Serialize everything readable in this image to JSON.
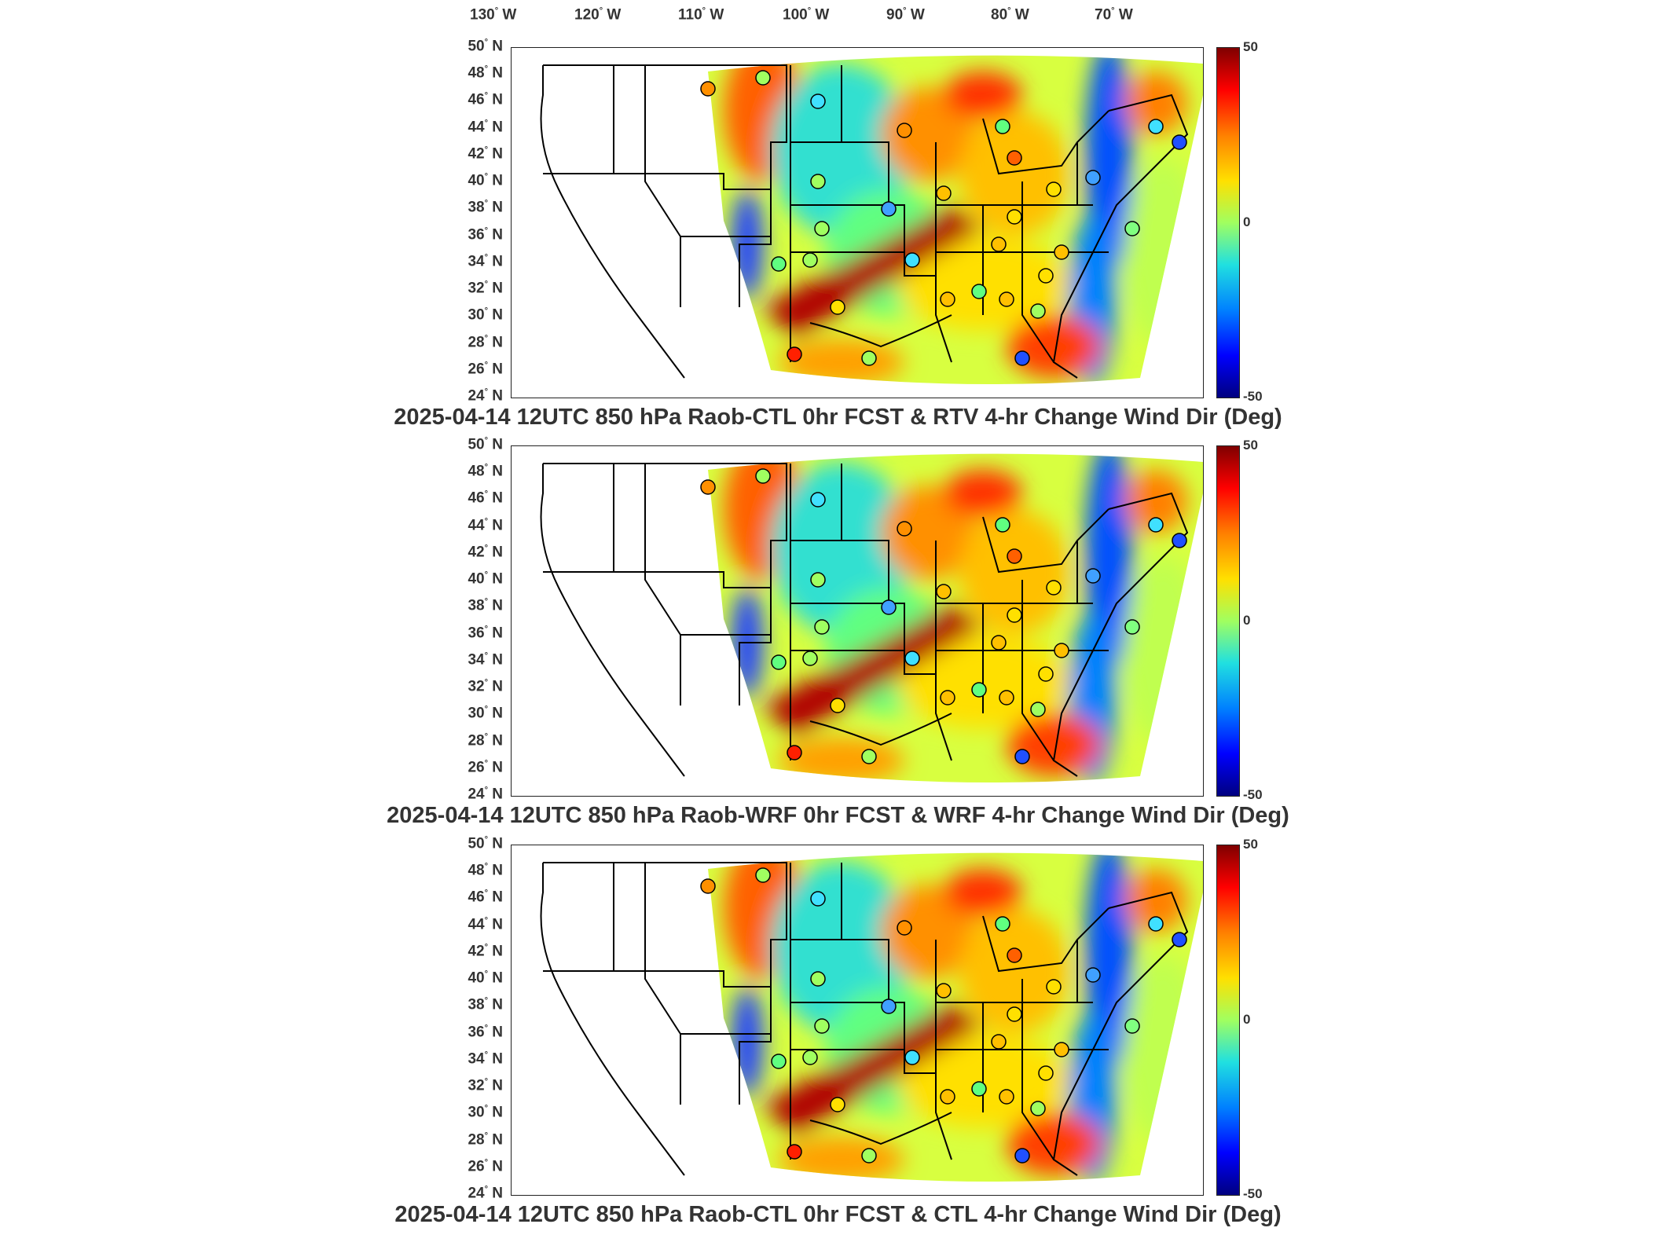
{
  "lon_labels": [
    {
      "deg": "130",
      "dir": "W"
    },
    {
      "deg": "120",
      "dir": "W"
    },
    {
      "deg": "110",
      "dir": "W"
    },
    {
      "deg": "100",
      "dir": "W"
    },
    {
      "deg": "90",
      "dir": "W"
    },
    {
      "deg": "80",
      "dir": "W"
    },
    {
      "deg": "70",
      "dir": "W"
    }
  ],
  "lat_labels": [
    {
      "deg": "50",
      "dir": "N"
    },
    {
      "deg": "48",
      "dir": "N"
    },
    {
      "deg": "46",
      "dir": "N"
    },
    {
      "deg": "44",
      "dir": "N"
    },
    {
      "deg": "42",
      "dir": "N"
    },
    {
      "deg": "40",
      "dir": "N"
    },
    {
      "deg": "38",
      "dir": "N"
    },
    {
      "deg": "36",
      "dir": "N"
    },
    {
      "deg": "34",
      "dir": "N"
    },
    {
      "deg": "32",
      "dir": "N"
    },
    {
      "deg": "30",
      "dir": "N"
    },
    {
      "deg": "28",
      "dir": "N"
    },
    {
      "deg": "26",
      "dir": "N"
    },
    {
      "deg": "24",
      "dir": "N"
    }
  ],
  "colorbar": {
    "max": "50",
    "mid": "0",
    "min": "-50"
  },
  "panels": [
    {
      "title": "2025-04-14 12UTC 850 hPa Raob-CTL 0hr FCST & RTV 4-hr Change Wind Dir (Deg)"
    },
    {
      "title": "2025-04-14 12UTC 850 hPa Raob-WRF 0hr FCST & WRF 4-hr Change Wind Dir (Deg)"
    },
    {
      "title": "2025-04-14 12UTC 850 hPa Raob-CTL 0hr FCST & CTL 4-hr Change Wind Dir (Deg)"
    }
  ],
  "colors": {
    "positive": "#ff0000",
    "zero": "#a0ff60",
    "negative": "#0000ff"
  }
}
